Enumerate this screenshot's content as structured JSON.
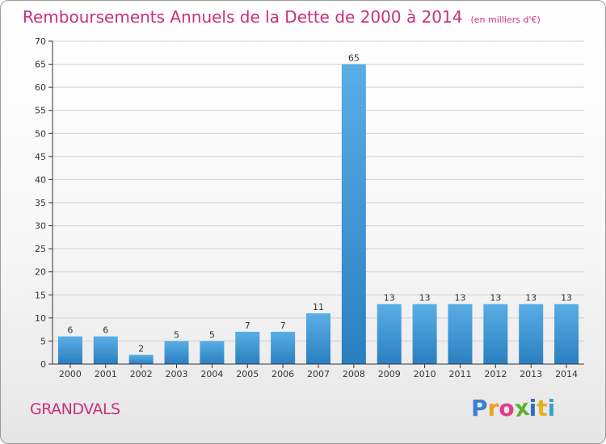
{
  "header": {
    "title": "Remboursements Annuels de la Dette de 2000 à 2014",
    "subtitle": "(en milliers d'€)"
  },
  "footer": {
    "commune": "GRANDVALS",
    "logo_text": "Proxiti",
    "logo_letters": [
      "P",
      "r",
      "o",
      "x",
      "i",
      "t",
      "i"
    ],
    "logo_colors": [
      "#3a7fd4",
      "#f0a020",
      "#e03c8a",
      "#60b030",
      "#2d6fc8",
      "#e8b020",
      "#3aa0d0"
    ]
  },
  "colors": {
    "accent": "#c8317a",
    "bar_light": "#5aaee6",
    "bar_dark": "#2a7fc0",
    "axis": "#333333",
    "grid": "#d0d0d0"
  },
  "chart_data": {
    "type": "bar",
    "title": "Remboursements Annuels de la Dette de 2000 à 2014",
    "subtitle": "(en milliers d'€)",
    "categories": [
      "2000",
      "2001",
      "2002",
      "2003",
      "2004",
      "2005",
      "2006",
      "2007",
      "2008",
      "2009",
      "2010",
      "2011",
      "2012",
      "2013",
      "2014"
    ],
    "values": [
      6,
      6,
      2,
      5,
      5,
      7,
      7,
      11,
      65,
      13,
      13,
      13,
      13,
      13,
      13
    ],
    "value_labels": [
      "6",
      "6",
      "2",
      "5",
      "5",
      "7",
      "7",
      "11",
      "65",
      "13",
      "13",
      "13",
      "13",
      "13",
      "13"
    ],
    "ylim": [
      0,
      70
    ],
    "yticks": [
      "0",
      "5",
      "10",
      "15",
      "20",
      "25",
      "30",
      "35",
      "40",
      "45",
      "50",
      "55",
      "60",
      "65",
      "70"
    ],
    "xlabel": "",
    "ylabel": "",
    "grid": true,
    "legend": "none"
  }
}
